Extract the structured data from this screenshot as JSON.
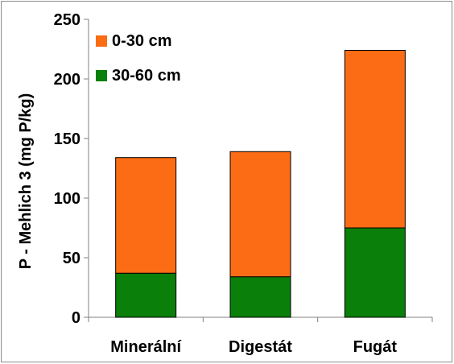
{
  "chart_data": {
    "type": "bar",
    "stacked": true,
    "categories": [
      "Minerální",
      "Digestát",
      "Fugát"
    ],
    "series": [
      {
        "name": "30-60 cm",
        "values": [
          37,
          34,
          75
        ],
        "color": "#0a7f0a"
      },
      {
        "name": "0-30 cm",
        "values": [
          97,
          105,
          149
        ],
        "color": "#fb6c14"
      }
    ],
    "legend": {
      "position": "top-left",
      "items": [
        {
          "label": "0-30 cm",
          "color": "#fb6c14"
        },
        {
          "label": "30-60 cm",
          "color": "#0a7f0a"
        }
      ]
    },
    "ylabel": "P - Mehlich 3 (mg P/kg)",
    "xlabel": "",
    "title": "",
    "ylim": [
      0,
      250
    ],
    "yticks": [
      "0",
      "50",
      "100",
      "150",
      "200",
      "250"
    ],
    "grid": false
  }
}
